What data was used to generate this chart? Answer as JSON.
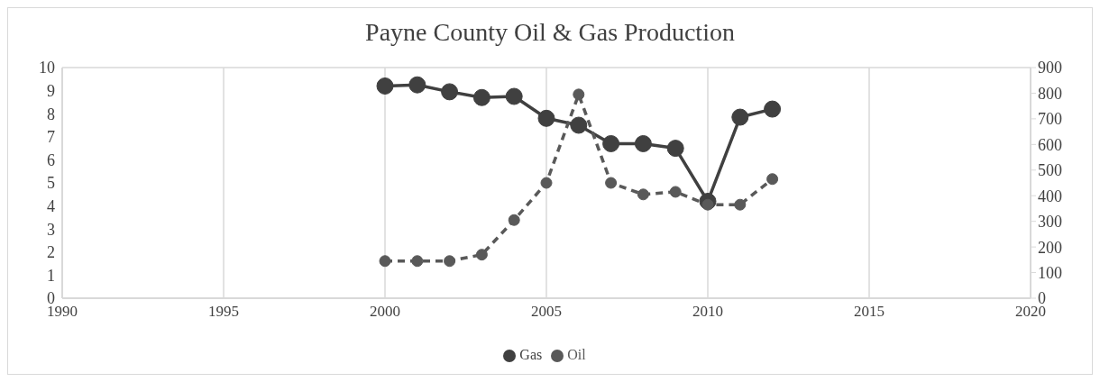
{
  "chart_data": {
    "type": "line",
    "title": "Payne County Oil & Gas Production",
    "x": [
      2000,
      2001,
      2002,
      2003,
      2004,
      2005,
      2006,
      2007,
      2008,
      2009,
      2010,
      2011,
      2012
    ],
    "series": [
      {
        "name": "Gas",
        "color": "#404040",
        "line_style": "solid",
        "values": [
          9.2,
          9.25,
          8.95,
          8.7,
          8.75,
          7.8,
          7.5,
          6.7,
          6.7,
          6.5,
          4.2,
          7.85,
          8.2
        ]
      },
      {
        "name": "Oil",
        "color": "#595959",
        "line_style": "dashed",
        "axis": "y2",
        "values": [
          145,
          145,
          145,
          170,
          305,
          450,
          795,
          450,
          405,
          415,
          365,
          365,
          465
        ]
      }
    ],
    "xlim": [
      1990,
      2020
    ],
    "xticks": [
      1990,
      1995,
      2000,
      2005,
      2010,
      2015,
      2020
    ],
    "ylim": [
      0,
      10
    ],
    "yticks": [
      0,
      1,
      2,
      3,
      4,
      5,
      6,
      7,
      8,
      9,
      10
    ],
    "y2lim": [
      0,
      900
    ],
    "y2ticks": [
      0,
      100,
      200,
      300,
      400,
      500,
      600,
      700,
      800,
      900
    ],
    "grid": true,
    "legend": "bottom",
    "marker": "circle"
  }
}
